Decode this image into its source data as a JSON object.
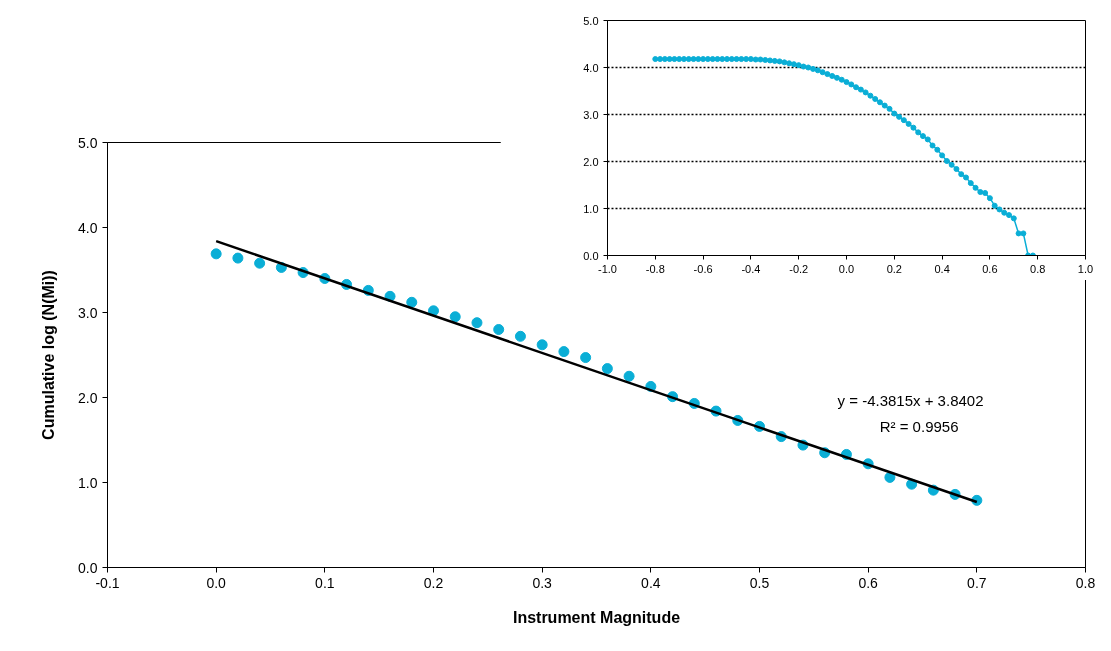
{
  "chart_data": [
    {
      "type": "scatter",
      "xlabel": "Instrument Magnitude",
      "ylabel": "Cumulative log (N(Mi))",
      "xlim": [
        -0.1,
        0.8
      ],
      "ylim": [
        0,
        5
      ],
      "xticks": [
        {
          "value": -0.1,
          "label": "-0.1"
        },
        {
          "value": 0,
          "label": "0.0"
        },
        {
          "value": 0.1,
          "label": "0.1"
        },
        {
          "value": 0.2,
          "label": "0.2"
        },
        {
          "value": 0.3,
          "label": "0.3"
        },
        {
          "value": 0.4,
          "label": "0.4"
        },
        {
          "value": 0.5,
          "label": "0.5"
        },
        {
          "value": 0.6,
          "label": "0.6"
        },
        {
          "value": 0.7,
          "label": "0.7"
        },
        {
          "value": 0.8,
          "label": "0.8"
        }
      ],
      "yticks": [
        {
          "value": 0,
          "label": "0.0"
        },
        {
          "value": 1,
          "label": "1.0"
        },
        {
          "value": 2,
          "label": "2.0"
        },
        {
          "value": 3,
          "label": "3.0"
        },
        {
          "value": 4,
          "label": "4.0"
        },
        {
          "value": 5,
          "label": "5.0"
        }
      ],
      "grid": false,
      "annotations": [
        "y = -4.3815x + 3.8402",
        "R² = 0.9956"
      ],
      "series": [
        {
          "type": "scatter",
          "marker": "circle",
          "color": "#0aaed6",
          "x": [
            0,
            0.02,
            0.04,
            0.06,
            0.08,
            0.1,
            0.12,
            0.14,
            0.16,
            0.18,
            0.2,
            0.22,
            0.24,
            0.26,
            0.28,
            0.3,
            0.32,
            0.34,
            0.36,
            0.38,
            0.4,
            0.42,
            0.44,
            0.46,
            0.48,
            0.5,
            0.52,
            0.54,
            0.56,
            0.58,
            0.6,
            0.62,
            0.64,
            0.66,
            0.68,
            0.7
          ],
          "values": [
            3.69,
            3.64,
            3.58,
            3.53,
            3.47,
            3.4,
            3.33,
            3.26,
            3.19,
            3.12,
            3.02,
            2.95,
            2.88,
            2.8,
            2.72,
            2.62,
            2.54,
            2.47,
            2.34,
            2.25,
            2.13,
            2.01,
            1.93,
            1.84,
            1.73,
            1.66,
            1.54,
            1.44,
            1.35,
            1.33,
            1.22,
            1.06,
            0.98,
            0.91,
            0.86,
            0.79
          ]
        },
        {
          "type": "line",
          "color": "#000000",
          "x": [
            0,
            0.7
          ],
          "values": [
            3.84,
            0.77
          ]
        }
      ]
    },
    {
      "type": "line",
      "xlim": [
        -1,
        1
      ],
      "ylim": [
        0,
        5
      ],
      "xticks": [
        {
          "value": -1,
          "label": "-1.0"
        },
        {
          "value": -0.8,
          "label": "-0.8"
        },
        {
          "value": -0.6,
          "label": "-0.6"
        },
        {
          "value": -0.4,
          "label": "-0.4"
        },
        {
          "value": -0.2,
          "label": "-0.2"
        },
        {
          "value": 0,
          "label": "0.0"
        },
        {
          "value": 0.2,
          "label": "0.2"
        },
        {
          "value": 0.4,
          "label": "0.4"
        },
        {
          "value": 0.6,
          "label": "0.6"
        },
        {
          "value": 0.8,
          "label": "0.8"
        },
        {
          "value": 1,
          "label": "1.0"
        }
      ],
      "yticks": [
        {
          "value": 0,
          "label": "0.0"
        },
        {
          "value": 1,
          "label": "1.0"
        },
        {
          "value": 2,
          "label": "2.0"
        },
        {
          "value": 3,
          "label": "3.0"
        },
        {
          "value": 4,
          "label": "4.0"
        },
        {
          "value": 5,
          "label": "5.0"
        }
      ],
      "grid": "y",
      "marker": "circle",
      "line_style": "solid",
      "series": [
        {
          "color": "#0aaed6",
          "x": [
            -0.8,
            -0.78,
            -0.76,
            -0.74,
            -0.72,
            -0.7,
            -0.68,
            -0.66,
            -0.64,
            -0.62,
            -0.6,
            -0.58,
            -0.56,
            -0.54,
            -0.52,
            -0.5,
            -0.48,
            -0.46,
            -0.44,
            -0.42,
            -0.4,
            -0.38,
            -0.36,
            -0.34,
            -0.32,
            -0.3,
            -0.28,
            -0.26,
            -0.24,
            -0.22,
            -0.2,
            -0.18,
            -0.16,
            -0.14,
            -0.12,
            -0.1,
            -0.08,
            -0.06,
            -0.04,
            -0.02,
            0,
            0.02,
            0.04,
            0.06,
            0.08,
            0.1,
            0.12,
            0.14,
            0.16,
            0.18,
            0.2,
            0.22,
            0.24,
            0.26,
            0.28,
            0.3,
            0.32,
            0.34,
            0.36,
            0.38,
            0.4,
            0.42,
            0.44,
            0.46,
            0.48,
            0.5,
            0.52,
            0.54,
            0.56,
            0.58,
            0.6,
            0.62,
            0.64,
            0.66,
            0.68,
            0.7,
            0.72,
            0.74,
            0.76,
            0.78
          ],
          "values": [
            4.18,
            4.18,
            4.18,
            4.18,
            4.18,
            4.18,
            4.18,
            4.18,
            4.18,
            4.18,
            4.18,
            4.18,
            4.18,
            4.18,
            4.18,
            4.18,
            4.18,
            4.18,
            4.18,
            4.18,
            4.18,
            4.17,
            4.17,
            4.16,
            4.15,
            4.14,
            4.13,
            4.11,
            4.09,
            4.07,
            4.05,
            4.02,
            4.0,
            3.97,
            3.94,
            3.9,
            3.86,
            3.82,
            3.78,
            3.74,
            3.69,
            3.64,
            3.58,
            3.53,
            3.47,
            3.4,
            3.33,
            3.26,
            3.19,
            3.12,
            3.02,
            2.95,
            2.88,
            2.8,
            2.72,
            2.62,
            2.54,
            2.47,
            2.34,
            2.25,
            2.13,
            2.01,
            1.93,
            1.84,
            1.73,
            1.66,
            1.54,
            1.44,
            1.35,
            1.33,
            1.22,
            1.06,
            0.98,
            0.91,
            0.86,
            0.79,
            0.47,
            0.47,
            0,
            0
          ]
        }
      ]
    }
  ]
}
